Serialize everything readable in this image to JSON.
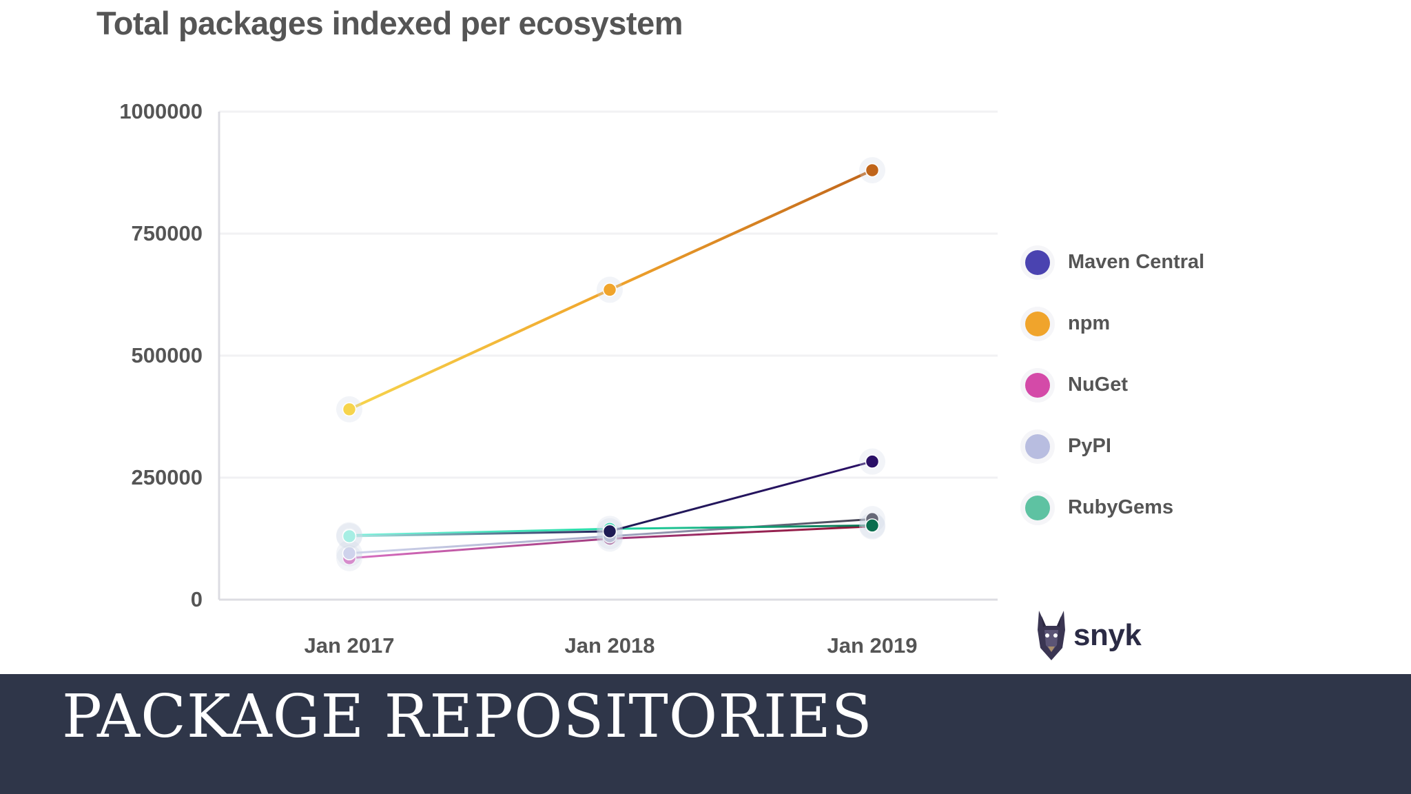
{
  "slide": {
    "banner_title": "PACKAGE REPOSITORIES",
    "logo_text": "snyk",
    "banner_color": "#2f3649"
  },
  "chart_data": {
    "type": "line",
    "title": "Total packages indexed per ecosystem",
    "xlabel": "",
    "ylabel": "",
    "categories": [
      "Jan 2017",
      "Jan 2018",
      "Jan 2019"
    ],
    "ylim": [
      0,
      1000000
    ],
    "yticks": [
      "0",
      "250000",
      "500000",
      "750000",
      "1000000"
    ],
    "ytick_values": [
      0,
      250000,
      500000,
      750000,
      1000000
    ],
    "grid": true,
    "legend_position": "right",
    "series": [
      {
        "name": "Maven Central",
        "values": [
          130000,
          140000,
          283000
        ],
        "legend_color": "#4a43b0",
        "colors": [
          "#a7eee4",
          "#1f1b55",
          "#2a0f66"
        ]
      },
      {
        "name": "npm",
        "values": [
          390000,
          635000,
          880000
        ],
        "legend_color": "#f0a42c",
        "colors": [
          "#f6d44c",
          "#f0a42c",
          "#c0651a"
        ]
      },
      {
        "name": "NuGet",
        "values": [
          85000,
          125000,
          150000
        ],
        "legend_color": "#d44aa8",
        "colors": [
          "#d870c2",
          "#a13a7e",
          "#8e1232"
        ]
      },
      {
        "name": "PyPI",
        "values": [
          95000,
          130000,
          165000
        ],
        "legend_color": "#b8bde0",
        "colors": [
          "#cfd3ec",
          "#a7abc8",
          "#3f3f4e"
        ]
      },
      {
        "name": "RubyGems",
        "values": [
          132000,
          145000,
          152000
        ],
        "legend_color": "#5ec2a2",
        "colors": [
          "#7af0dc",
          "#22dba5",
          "#0b6e4f"
        ]
      }
    ]
  }
}
